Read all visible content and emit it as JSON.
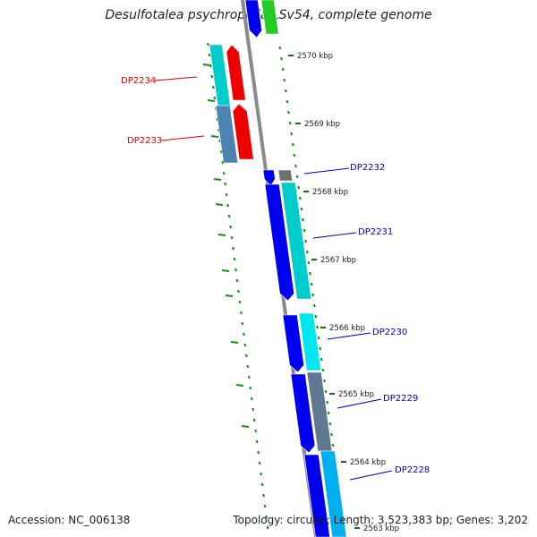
{
  "header": {
    "title": "Desulfotalea psychrophila LSv54, complete genome"
  },
  "footer": {
    "accession": "Accession: NC_006138",
    "topology": "Topology: circular; Length: 3,523,383 bp; Genes: 3,202"
  },
  "scale": {
    "ticks": [
      {
        "label": "2570 kbp"
      },
      {
        "label": "2569 kbp"
      },
      {
        "label": "2568 kbp"
      },
      {
        "label": "2567 kbp"
      },
      {
        "label": "2566 kbp"
      },
      {
        "label": "2565 kbp"
      },
      {
        "label": "2564 kbp"
      },
      {
        "label": "2563 kbp"
      }
    ]
  },
  "genes": [
    {
      "name": "DP2234",
      "strand": "minus",
      "color": "#dd0000"
    },
    {
      "name": "DP2233",
      "strand": "minus",
      "color": "#dd0000"
    },
    {
      "name": "DP2232",
      "strand": "plus",
      "color": "#0000cc"
    },
    {
      "name": "DP2231",
      "strand": "plus",
      "color": "#0000cc"
    },
    {
      "name": "DP2230",
      "strand": "plus",
      "color": "#0000cc"
    },
    {
      "name": "DP2229",
      "strand": "plus",
      "color": "#0000cc"
    },
    {
      "name": "DP2228",
      "strand": "plus",
      "color": "#0000cc"
    }
  ],
  "colors": {
    "backbone": "#8a8a8a",
    "gc_dots": "#1a8a1a",
    "tick_marks": "#1a6a1a",
    "cds_blue": "#0000ee",
    "cds_red": "#ee0000",
    "cds_green": "#22cc22",
    "cog_cyan": "#00cccc",
    "cog_steel": "#4e82b0",
    "cog_aqua": "#00e6ee",
    "cog_slate": "#607890",
    "cog_sky": "#00b0f0",
    "cog_gray": "#707070"
  }
}
